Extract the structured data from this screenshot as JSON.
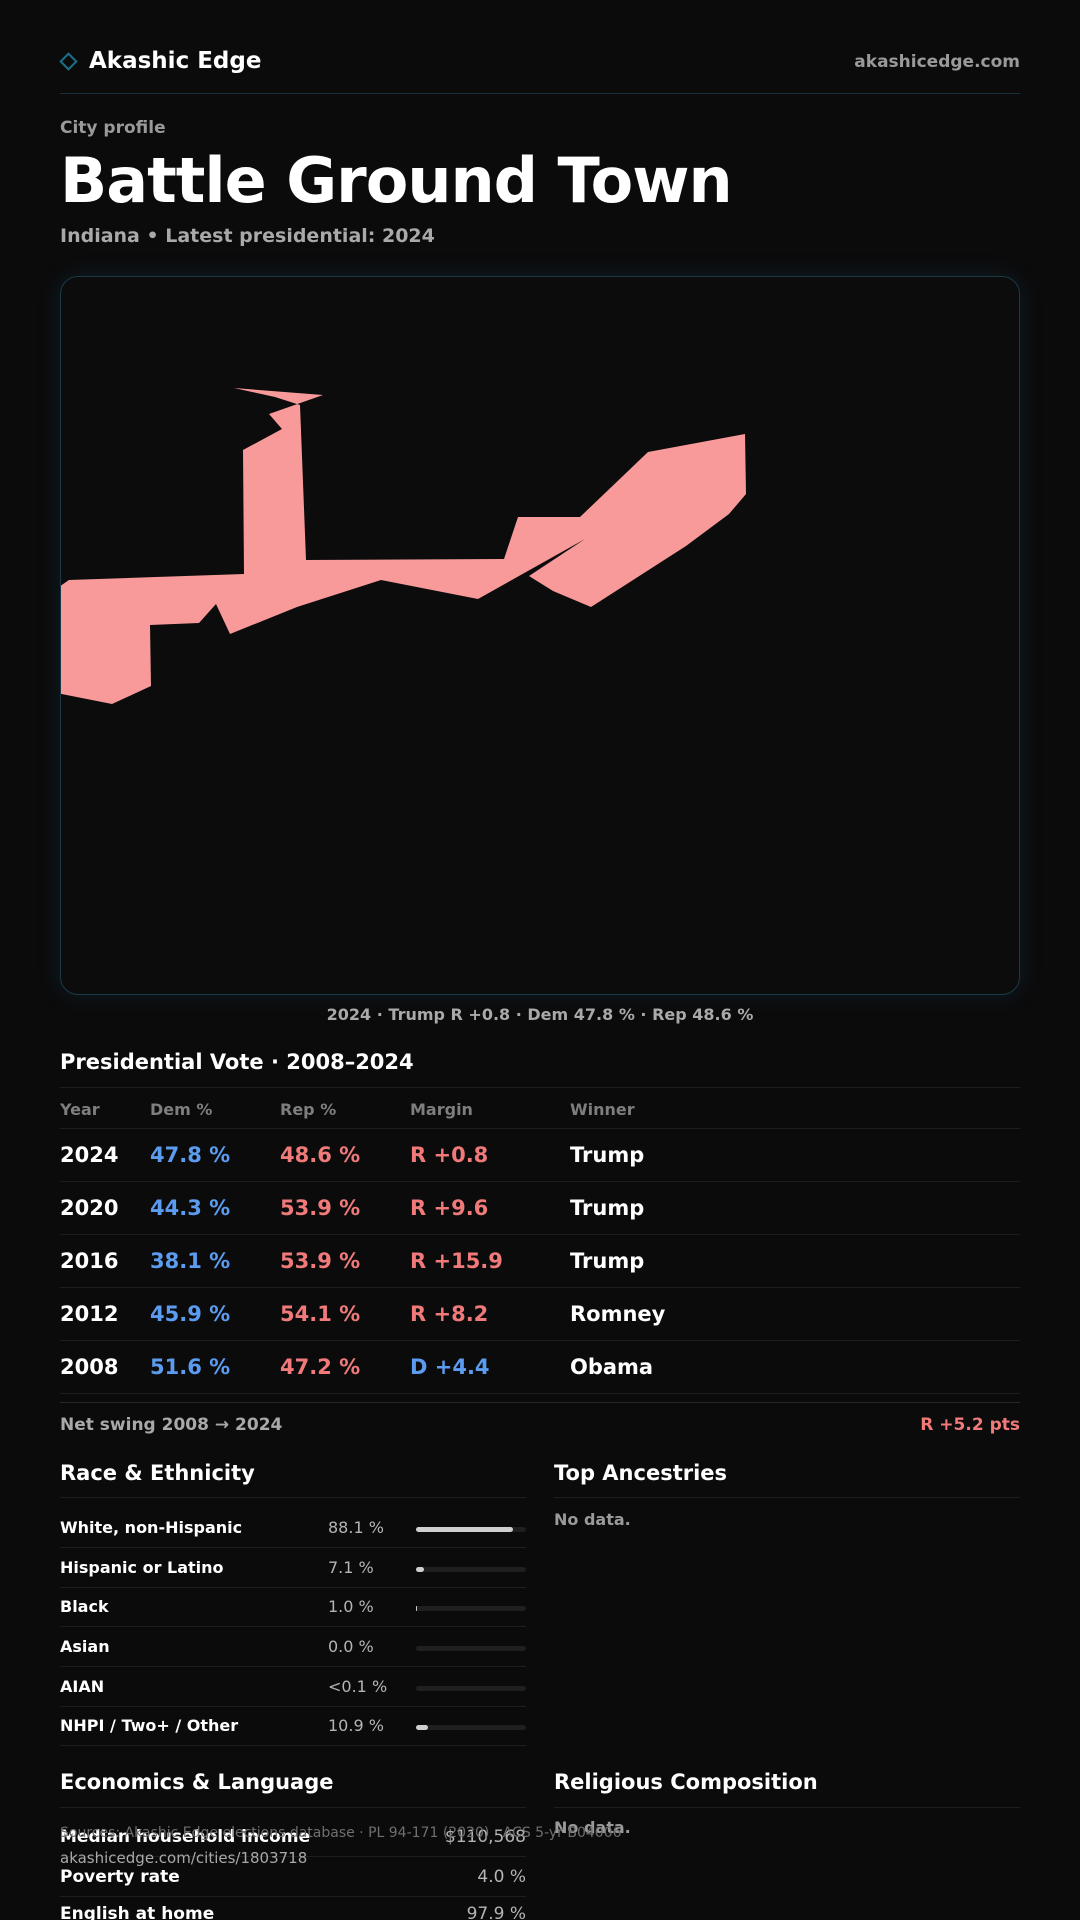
{
  "header": {
    "brand_icon": "diamond-icon",
    "brand_name": "Akashic Edge",
    "site_url": "akashicedge.com"
  },
  "page": {
    "eyebrow": "City profile",
    "title": "Battle Ground Town",
    "subtitle": "Indiana • Latest presidential: 2024"
  },
  "map": {
    "fill_color": "#f99a9a",
    "caption": "2024 · Trump R +0.8 · Dem 47.8 % · Rep 48.6 %"
  },
  "presidential": {
    "title": "Presidential Vote · 2008–2024",
    "columns": {
      "year": "Year",
      "dem": "Dem %",
      "rep": "Rep %",
      "margin": "Margin",
      "winner": "Winner"
    },
    "rows": [
      {
        "year": "2024",
        "dem": "47.8 %",
        "rep": "48.6 %",
        "margin": "R +0.8",
        "margin_party": "R",
        "winner": "Trump"
      },
      {
        "year": "2020",
        "dem": "44.3 %",
        "rep": "53.9 %",
        "margin": "R +9.6",
        "margin_party": "R",
        "winner": "Trump"
      },
      {
        "year": "2016",
        "dem": "38.1 %",
        "rep": "53.9 %",
        "margin": "R +15.9",
        "margin_party": "R",
        "winner": "Trump"
      },
      {
        "year": "2012",
        "dem": "45.9 %",
        "rep": "54.1 %",
        "margin": "R +8.2",
        "margin_party": "R",
        "winner": "Romney"
      },
      {
        "year": "2008",
        "dem": "51.6 %",
        "rep": "47.2 %",
        "margin": "D +4.4",
        "margin_party": "D",
        "winner": "Obama"
      }
    ],
    "swing_label": "Net swing 2008 → 2024",
    "swing_value": "R +5.2 pts"
  },
  "race": {
    "title": "Race & Ethnicity",
    "rows": [
      {
        "label": "White, non-Hispanic",
        "value": "88.1 %",
        "share": 0.881
      },
      {
        "label": "Hispanic or Latino",
        "value": "7.1 %",
        "share": 0.071
      },
      {
        "label": "Black",
        "value": "1.0 %",
        "share": 0.01
      },
      {
        "label": "Asian",
        "value": "0.0 %",
        "share": 0.0
      },
      {
        "label": "AIAN",
        "value": "<0.1 %",
        "share": 0.0
      },
      {
        "label": "NHPI / Two+ / Other",
        "value": "10.9 %",
        "share": 0.109
      }
    ]
  },
  "ancestries": {
    "title": "Top Ancestries",
    "empty": "No data."
  },
  "economics": {
    "title": "Economics & Language",
    "rows": [
      {
        "label": "Median household income",
        "value": "$110,568"
      },
      {
        "label": "Poverty rate",
        "value": "4.0 %"
      },
      {
        "label": "English at home",
        "value": "97.9 %"
      }
    ]
  },
  "religion": {
    "title": "Religious Composition",
    "empty": "No data."
  },
  "footer": {
    "sources": "Sources: Akashic Edge elections database · PL 94-171 (2020) · ACS 5-yr B04006",
    "url": "akashicedge.com/cities/1803718"
  },
  "colors": {
    "dem": "#5b9cf0",
    "rep": "#f07a7a",
    "accent": "#1b6f86",
    "background": "#0c0b0c"
  }
}
